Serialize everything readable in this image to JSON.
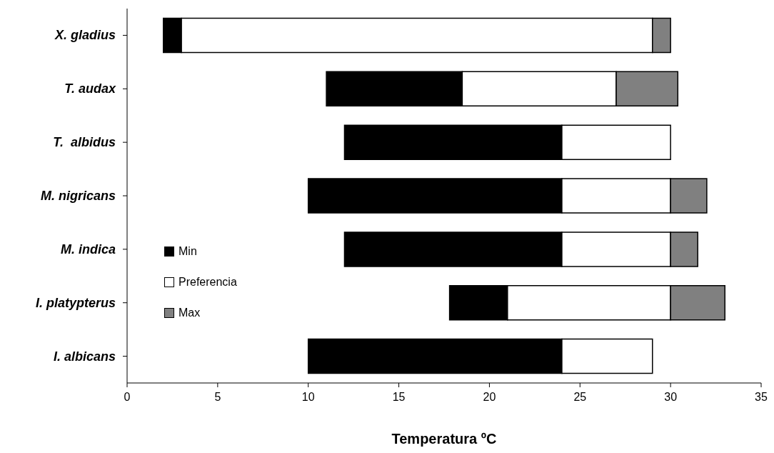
{
  "chart_data": {
    "type": "bar",
    "orientation": "horizontal",
    "xlabel": "Temperatura ºC",
    "categories": [
      "X. gladius",
      "T. audax",
      "T.  albidus",
      "M. nigricans",
      "M. indica",
      "I. platypterus",
      "I. albicans"
    ],
    "series": [
      {
        "name": "Min",
        "color": "#000000",
        "base": [
          2,
          11,
          12,
          10,
          12,
          17.8,
          10
        ],
        "values": [
          1,
          7.5,
          12,
          14,
          12,
          3.2,
          14
        ]
      },
      {
        "name": "Preferencia",
        "color": "#ffffff",
        "base": [
          3,
          18.5,
          24,
          24,
          24,
          21,
          24
        ],
        "values": [
          26,
          8.5,
          6,
          6,
          6,
          9,
          5
        ]
      },
      {
        "name": "Max",
        "color": "#808080",
        "base": [
          29,
          27,
          null,
          30,
          30,
          30,
          null
        ],
        "values": [
          1,
          3.4,
          null,
          2,
          1.5,
          3,
          null
        ]
      }
    ],
    "xlim": [
      0,
      35
    ],
    "xticks": [
      0,
      5,
      10,
      15,
      20,
      25,
      30,
      35
    ],
    "grid": false,
    "legend": "left"
  }
}
